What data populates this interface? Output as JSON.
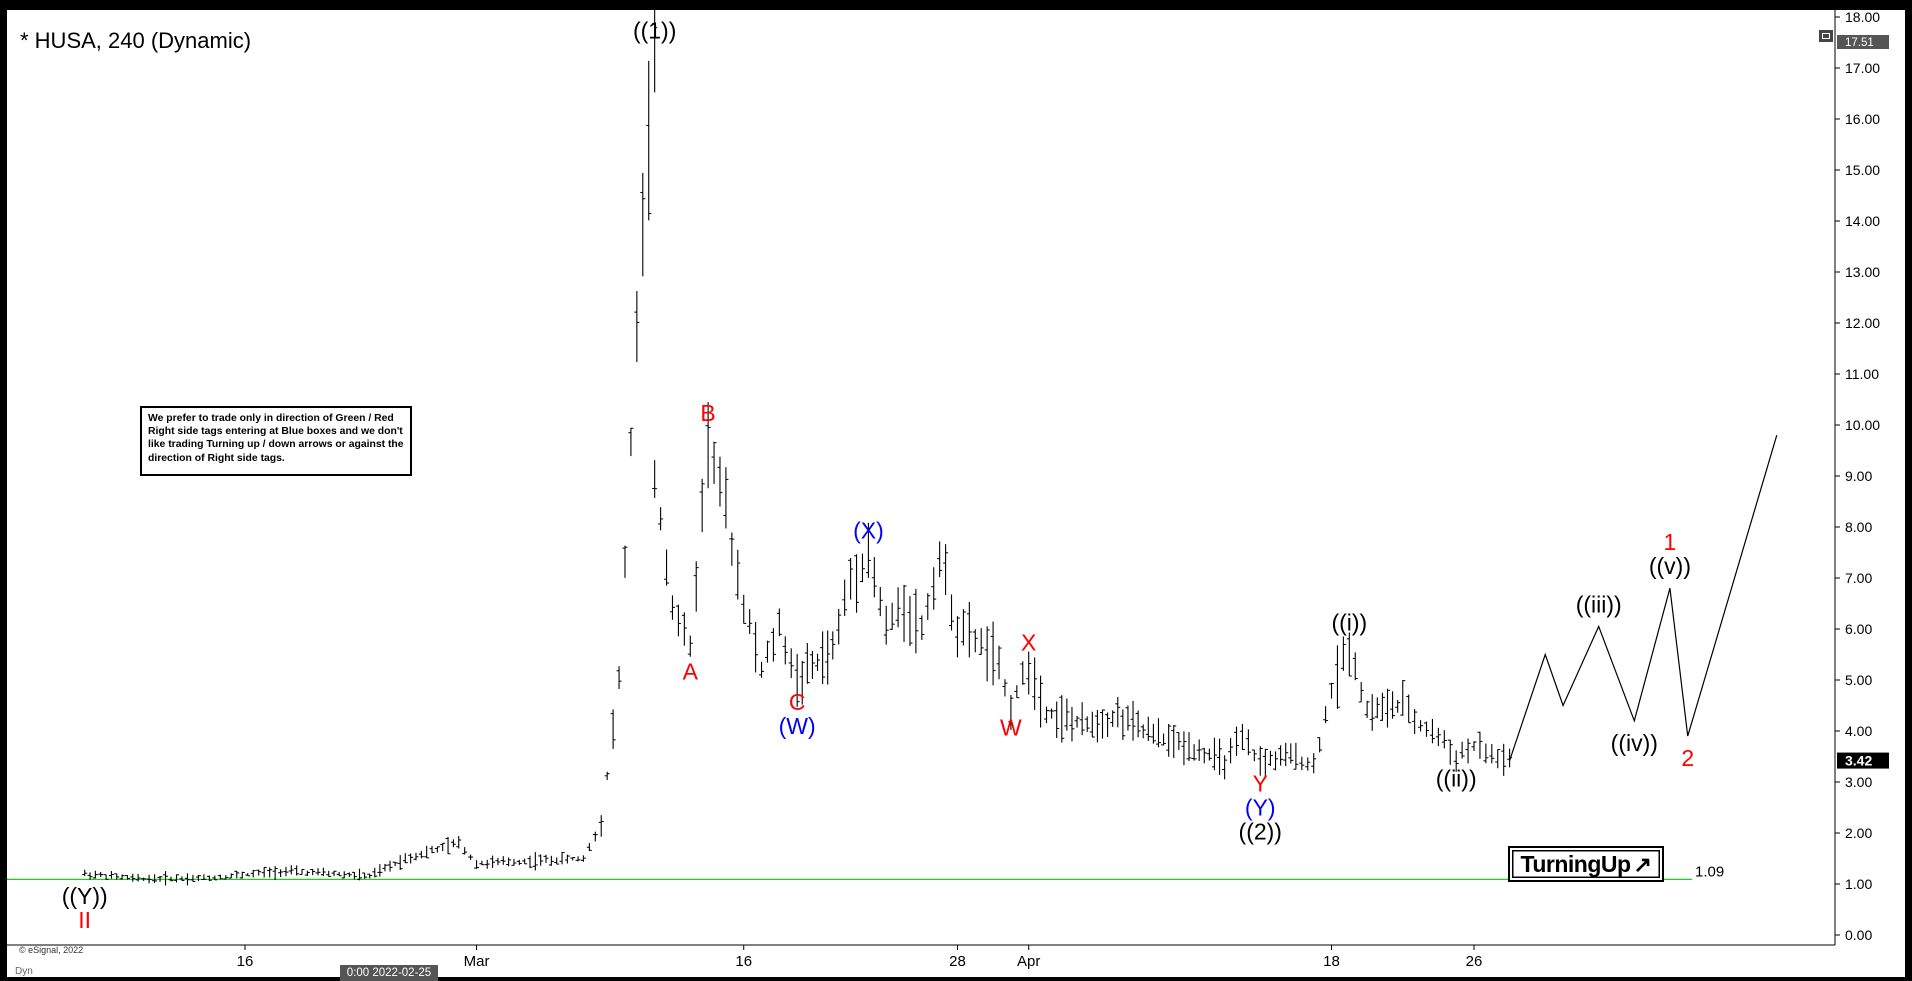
{
  "window": {
    "title": "* HUSA, 240 (Dynamic)",
    "copyright": "© eSignal, 2022",
    "footer_mode": "Dyn",
    "crosshair_label": "0:00 2022-02-25"
  },
  "note_text": "We prefer to trade only in direction of Green / Red Right side tags entering at Blue boxes and we don't like trading Turning up / down arrows or against the direction of Right side tags.",
  "turning_badge": {
    "label": "TurningUp",
    "arrow": "↗"
  },
  "colors": {
    "price_bars": "#000000",
    "support_line": "#22cc22",
    "label_red": "#ff0000",
    "label_blue": "#0000ff",
    "label_black": "#000000",
    "last_price_tag": "#000000"
  },
  "chart_data": {
    "type": "ohlc",
    "symbol": "HUSA",
    "interval": "240",
    "y_axis": {
      "ticks": [
        "0.00",
        "1.00",
        "2.00",
        "3.00",
        "4.00",
        "5.00",
        "6.00",
        "7.00",
        "8.00",
        "9.00",
        "10.00",
        "11.00",
        "12.00",
        "13.00",
        "14.00",
        "15.00",
        "16.00",
        "17.00",
        "18.00"
      ],
      "range": [
        0,
        18
      ],
      "high_marker": "17.51",
      "last_price": "3.42"
    },
    "x_axis": {
      "ticks": [
        {
          "label": "16",
          "date": "2022-02-16"
        },
        {
          "label": "Mar",
          "date": "2022-03-01"
        },
        {
          "label": "16",
          "date": "2022-03-16"
        },
        {
          "label": "28",
          "date": "2022-03-28"
        },
        {
          "label": "Apr",
          "date": "2022-04-01"
        },
        {
          "label": "18",
          "date": "2022-04-18"
        },
        {
          "label": "26",
          "date": "2022-04-26"
        }
      ]
    },
    "support_level": {
      "value": 1.09,
      "label": "1.09"
    },
    "price_path": [
      {
        "date": "2022-02-07",
        "price": 1.2
      },
      {
        "date": "2022-02-10",
        "price": 1.1
      },
      {
        "date": "2022-02-14",
        "price": 1.12
      },
      {
        "date": "2022-02-18",
        "price": 1.25
      },
      {
        "date": "2022-02-21",
        "price": 1.2
      },
      {
        "date": "2022-02-23",
        "price": 1.15
      },
      {
        "date": "2022-02-25",
        "price": 1.5
      },
      {
        "date": "2022-02-28",
        "price": 1.8
      },
      {
        "date": "2022-03-01",
        "price": 1.4
      },
      {
        "date": "2022-03-04",
        "price": 1.45
      },
      {
        "date": "2022-03-07",
        "price": 1.5
      },
      {
        "date": "2022-03-08",
        "price": 2.2
      },
      {
        "date": "2022-03-09",
        "price": 5.0
      },
      {
        "date": "2022-03-10",
        "price": 12.0
      },
      {
        "date": "2022-03-11",
        "price": 17.3
      },
      {
        "date": "2022-03-11",
        "price": 9.0
      },
      {
        "date": "2022-03-12",
        "price": 6.5
      },
      {
        "date": "2022-03-13",
        "price": 5.6
      },
      {
        "date": "2022-03-14",
        "price": 9.8
      },
      {
        "date": "2022-03-15",
        "price": 8.3
      },
      {
        "date": "2022-03-16",
        "price": 6.5
      },
      {
        "date": "2022-03-17",
        "price": 5.2
      },
      {
        "date": "2022-03-18",
        "price": 6.0
      },
      {
        "date": "2022-03-19",
        "price": 5.0
      },
      {
        "date": "2022-03-21",
        "price": 5.6
      },
      {
        "date": "2022-03-22",
        "price": 7.0
      },
      {
        "date": "2022-03-23",
        "price": 7.5
      },
      {
        "date": "2022-03-24",
        "price": 6.0
      },
      {
        "date": "2022-03-25",
        "price": 6.5
      },
      {
        "date": "2022-03-26",
        "price": 6.0
      },
      {
        "date": "2022-03-27",
        "price": 7.4
      },
      {
        "date": "2022-03-28",
        "price": 6.0
      },
      {
        "date": "2022-03-29",
        "price": 5.8
      },
      {
        "date": "2022-03-30",
        "price": 5.5
      },
      {
        "date": "2022-03-31",
        "price": 4.5
      },
      {
        "date": "2022-04-01",
        "price": 5.3
      },
      {
        "date": "2022-04-02",
        "price": 4.4
      },
      {
        "date": "2022-04-04",
        "price": 4.1
      },
      {
        "date": "2022-04-06",
        "price": 4.3
      },
      {
        "date": "2022-04-08",
        "price": 3.9
      },
      {
        "date": "2022-04-10",
        "price": 3.7
      },
      {
        "date": "2022-04-12",
        "price": 3.4
      },
      {
        "date": "2022-04-13",
        "price": 3.8
      },
      {
        "date": "2022-04-14",
        "price": 3.4
      },
      {
        "date": "2022-04-16",
        "price": 3.5
      },
      {
        "date": "2022-04-17",
        "price": 3.3
      },
      {
        "date": "2022-04-18",
        "price": 4.8
      },
      {
        "date": "2022-04-19",
        "price": 5.7
      },
      {
        "date": "2022-04-20",
        "price": 4.4
      },
      {
        "date": "2022-04-22",
        "price": 4.5
      },
      {
        "date": "2022-04-23",
        "price": 4.1
      },
      {
        "date": "2022-04-24",
        "price": 3.9
      },
      {
        "date": "2022-04-25",
        "price": 3.5
      },
      {
        "date": "2022-04-26",
        "price": 3.7
      },
      {
        "date": "2022-04-27",
        "price": 3.5
      },
      {
        "date": "2022-04-28",
        "price": 3.42
      }
    ],
    "projection": [
      {
        "date": "2022-04-28",
        "price": 3.42
      },
      {
        "date": "2022-04-30",
        "price": 5.5
      },
      {
        "date": "2022-05-01",
        "price": 4.5
      },
      {
        "date": "2022-05-03",
        "price": 6.05
      },
      {
        "date": "2022-05-05",
        "price": 4.2
      },
      {
        "date": "2022-05-07",
        "price": 6.8
      },
      {
        "date": "2022-05-08",
        "price": 3.9
      },
      {
        "date": "2022-05-13",
        "price": 9.8
      }
    ],
    "annotations": [
      {
        "text": "((1))",
        "color": "black",
        "date": "2022-03-11",
        "price": 17.3,
        "position": "above"
      },
      {
        "text": "A",
        "color": "red",
        "date": "2022-03-13",
        "price": 5.6,
        "position": "below"
      },
      {
        "text": "B",
        "color": "red",
        "date": "2022-03-14",
        "price": 9.8,
        "position": "above"
      },
      {
        "text": "C",
        "color": "red",
        "date": "2022-03-19",
        "price": 5.0,
        "position": "below"
      },
      {
        "text": "(W)",
        "color": "blue",
        "date": "2022-03-19",
        "price": 5.0,
        "position": "below2"
      },
      {
        "text": "(X)",
        "color": "blue",
        "date": "2022-03-23",
        "price": 7.5,
        "position": "above"
      },
      {
        "text": "W",
        "color": "red",
        "date": "2022-03-31",
        "price": 4.5,
        "position": "below"
      },
      {
        "text": "X",
        "color": "red",
        "date": "2022-04-01",
        "price": 5.3,
        "position": "above"
      },
      {
        "text": "Y",
        "color": "red",
        "date": "2022-04-14",
        "price": 3.4,
        "position": "below"
      },
      {
        "text": "(Y)",
        "color": "blue",
        "date": "2022-04-14",
        "price": 3.4,
        "position": "below2"
      },
      {
        "text": "((2))",
        "color": "black",
        "date": "2022-04-14",
        "price": 3.4,
        "position": "below3"
      },
      {
        "text": "((i))",
        "color": "black",
        "date": "2022-04-19",
        "price": 5.7,
        "position": "above"
      },
      {
        "text": "((ii))",
        "color": "black",
        "date": "2022-04-25",
        "price": 3.5,
        "position": "below"
      },
      {
        "text": "((iii))",
        "color": "black",
        "date": "2022-05-03",
        "price": 6.05,
        "position": "above"
      },
      {
        "text": "((iv))",
        "color": "black",
        "date": "2022-05-05",
        "price": 4.2,
        "position": "below"
      },
      {
        "text": "((v))",
        "color": "black",
        "date": "2022-05-07",
        "price": 6.8,
        "position": "above"
      },
      {
        "text": "1",
        "color": "red",
        "date": "2022-05-07",
        "price": 6.8,
        "position": "above2"
      },
      {
        "text": "2",
        "color": "red",
        "date": "2022-05-08",
        "price": 3.9,
        "position": "below"
      },
      {
        "text": "((Y))",
        "color": "black",
        "date": "2022-02-07",
        "price": 1.2,
        "position": "below"
      },
      {
        "text": "II",
        "color": "red",
        "date": "2022-02-07",
        "price": 1.2,
        "position": "below2"
      }
    ]
  }
}
